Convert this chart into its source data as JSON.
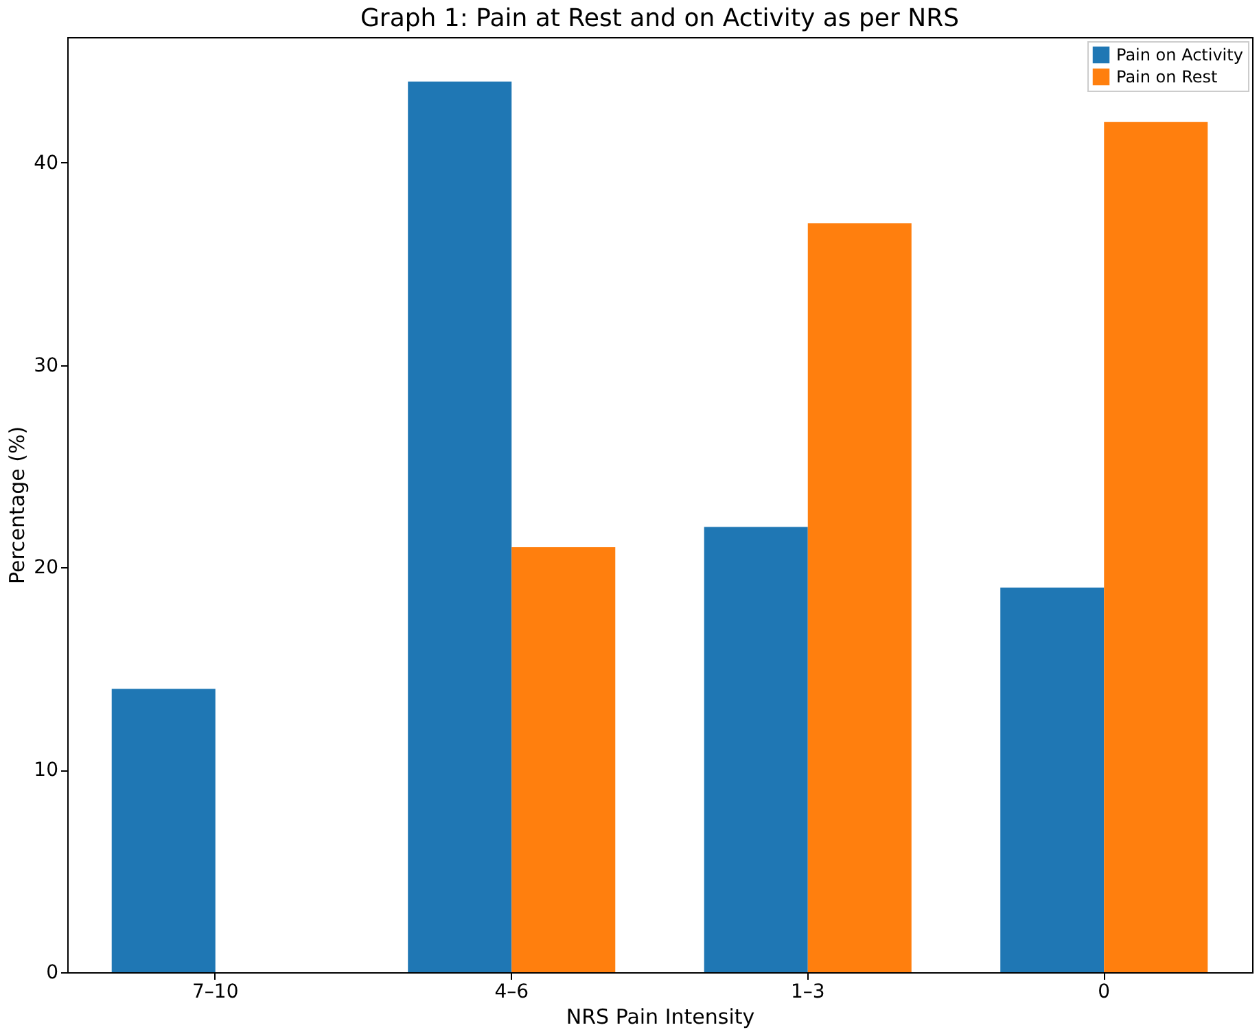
{
  "chart_data": {
    "type": "bar",
    "title": "Graph 1: Pain at Rest and on Activity as per NRS",
    "xlabel": "NRS Pain Intensity",
    "ylabel": "Percentage (%)",
    "categories": [
      "7–10",
      "4–6",
      "1–3",
      "0"
    ],
    "series": [
      {
        "name": "Pain on Activity",
        "color": "#1f77b4",
        "values": [
          14,
          44,
          22,
          19
        ]
      },
      {
        "name": "Pain on Rest",
        "color": "#ff7f0e",
        "values": [
          0,
          21,
          37,
          42
        ]
      }
    ],
    "ylim": [
      0,
      46.2
    ],
    "yticks": [
      0,
      10,
      20,
      30,
      40
    ],
    "grid": false,
    "legend": "top right"
  }
}
